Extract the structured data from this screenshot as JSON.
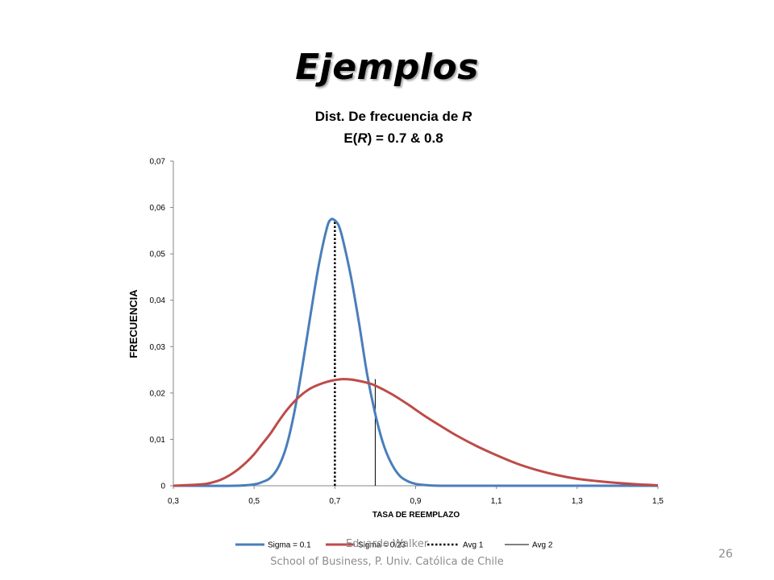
{
  "slide": {
    "title": "Ejemplos",
    "footer_author": "Eduardo Walker",
    "footer_school": "School of Business, P. Univ. Católica de Chile",
    "page_number": "26"
  },
  "chart_data": {
    "type": "line",
    "title": "Dist. De frecuencia de R",
    "subtitle_prefix": "E(",
    "subtitle_var": "R",
    "subtitle_suffix": ") = 0.7 & 0.8",
    "title_var": "R",
    "title_prefix": "Dist. De frecuencia de ",
    "xlabel": "TASA DE REEMPLAZO",
    "ylabel": "FRECUENCIA",
    "xlim": [
      0.3,
      1.5
    ],
    "ylim": [
      0,
      0.07
    ],
    "x_ticks": [
      "0,3",
      "0,5",
      "0,7",
      "0,9",
      "1,1",
      "1,3",
      "1,5"
    ],
    "x_tick_values": [
      0.3,
      0.5,
      0.7,
      0.9,
      1.1,
      1.3,
      1.5
    ],
    "y_ticks": [
      "0",
      "0,01",
      "0,02",
      "0,03",
      "0,04",
      "0,05",
      "0,06",
      "0,07"
    ],
    "y_tick_values": [
      0,
      0.01,
      0.02,
      0.03,
      0.04,
      0.05,
      0.06,
      0.07
    ],
    "grid": false,
    "legend_position": "bottom",
    "series": [
      {
        "name": "Sigma = 0.1",
        "color": "#4a7ebb",
        "style": "solid",
        "x": [
          0.3,
          0.45,
          0.5,
          0.52,
          0.54,
          0.56,
          0.58,
          0.6,
          0.62,
          0.64,
          0.66,
          0.68,
          0.69,
          0.7,
          0.71,
          0.72,
          0.74,
          0.76,
          0.78,
          0.8,
          0.82,
          0.84,
          0.86,
          0.88,
          0.9,
          0.93,
          0.96,
          1.0,
          1.05,
          1.5
        ],
        "y": [
          0,
          0,
          0.0003,
          0.0008,
          0.0017,
          0.004,
          0.0085,
          0.016,
          0.026,
          0.037,
          0.0475,
          0.0555,
          0.0574,
          0.0572,
          0.056,
          0.053,
          0.045,
          0.035,
          0.024,
          0.0155,
          0.009,
          0.0048,
          0.0022,
          0.001,
          0.0004,
          0.0001,
          0,
          0,
          0,
          0
        ]
      },
      {
        "name": "Sigma = 0.23",
        "color": "#be4b48",
        "style": "solid",
        "x": [
          0.3,
          0.35,
          0.38,
          0.4,
          0.42,
          0.44,
          0.46,
          0.48,
          0.5,
          0.52,
          0.54,
          0.56,
          0.58,
          0.6,
          0.62,
          0.64,
          0.66,
          0.68,
          0.7,
          0.72,
          0.74,
          0.76,
          0.78,
          0.8,
          0.84,
          0.88,
          0.92,
          0.96,
          1.0,
          1.05,
          1.1,
          1.15,
          1.2,
          1.25,
          1.3,
          1.35,
          1.4,
          1.45,
          1.5
        ],
        "y": [
          0,
          0.0002,
          0.0004,
          0.0008,
          0.0014,
          0.0023,
          0.0035,
          0.005,
          0.0068,
          0.009,
          0.0112,
          0.0138,
          0.0162,
          0.0182,
          0.0198,
          0.021,
          0.0218,
          0.0224,
          0.0228,
          0.023,
          0.0229,
          0.0226,
          0.0222,
          0.0216,
          0.0198,
          0.0176,
          0.0152,
          0.013,
          0.0109,
          0.0086,
          0.0066,
          0.0048,
          0.0034,
          0.0023,
          0.0015,
          0.001,
          0.0006,
          0.0003,
          0.0001
        ]
      },
      {
        "name": "Avg 1",
        "color": "#000000",
        "style": "dotted",
        "x": [
          0.7,
          0.7
        ],
        "y": [
          0,
          0.0574
        ]
      },
      {
        "name": "Avg 2",
        "color": "#000000",
        "style": "solid-thin",
        "x": [
          0.8,
          0.8
        ],
        "y": [
          0,
          0.023
        ]
      }
    ]
  }
}
